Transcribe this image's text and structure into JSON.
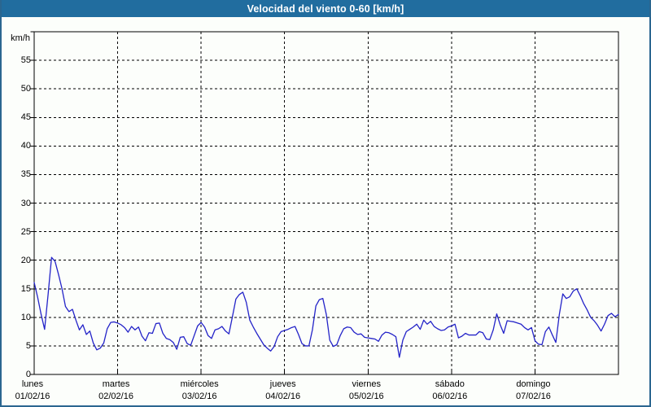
{
  "window": {
    "title": "Velocidad del viento 0-60 [km/h]"
  },
  "colors": {
    "titlebar_bg": "#216d9f",
    "titlebar_text": "#ffffff",
    "frame_border": "#2b6690",
    "background": "#fcfefb",
    "line": "#2323c8",
    "grid": "#000000",
    "label_text": "#000000"
  },
  "chart_data": {
    "type": "line",
    "title": "Velocidad del viento 0-60 [km/h]",
    "ylabel": "km/h",
    "ylim": [
      0,
      60
    ],
    "y_ticks": [
      0,
      5,
      10,
      15,
      20,
      25,
      30,
      35,
      40,
      45,
      50,
      55
    ],
    "grid": true,
    "legend": false,
    "x_days": [
      {
        "name": "lunes",
        "date": "01/02/16"
      },
      {
        "name": "martes",
        "date": "02/02/16"
      },
      {
        "name": "miércoles",
        "date": "03/02/16"
      },
      {
        "name": "jueves",
        "date": "04/02/16"
      },
      {
        "name": "viernes",
        "date": "05/02/16"
      },
      {
        "name": "sábado",
        "date": "06/02/16"
      },
      {
        "name": "domingo",
        "date": "07/02/16"
      }
    ],
    "series": [
      {
        "name": "velocidad del viento",
        "unit": "km/h",
        "sampling": "hourly, lunes 01/02/16 00:00 → domingo 07/02/16 24:00",
        "values": [
          16.1,
          13.5,
          10.5,
          7.9,
          14.0,
          20.5,
          19.8,
          17.5,
          15.0,
          11.9,
          11.0,
          11.4,
          9.5,
          7.8,
          8.7,
          7.0,
          7.6,
          5.5,
          4.3,
          4.6,
          5.5,
          8.0,
          9.1,
          9.2,
          9.0,
          8.7,
          8.2,
          7.4,
          8.4,
          7.8,
          8.3,
          6.7,
          5.9,
          7.3,
          7.2,
          8.9,
          9.0,
          7.2,
          6.3,
          6.1,
          5.6,
          4.4,
          6.5,
          6.6,
          5.4,
          5.1,
          6.8,
          8.5,
          9.1,
          8.3,
          6.8,
          6.3,
          7.8,
          8.0,
          8.4,
          7.6,
          7.1,
          10.1,
          13.2,
          14.0,
          14.4,
          12.6,
          9.5,
          8.3,
          7.2,
          6.2,
          5.2,
          4.6,
          4.1,
          4.9,
          6.6,
          7.5,
          7.7,
          7.9,
          8.2,
          8.4,
          7.0,
          5.4,
          5.0,
          5.0,
          7.8,
          12.0,
          13.1,
          13.3,
          10.5,
          6.0,
          4.9,
          5.2,
          6.8,
          8.0,
          8.3,
          8.2,
          7.4,
          7.0,
          7.1,
          6.5,
          6.4,
          6.3,
          6.2,
          5.8,
          6.9,
          7.4,
          7.3,
          7.0,
          6.6,
          3.0,
          6.0,
          7.5,
          7.9,
          8.3,
          8.8,
          7.9,
          9.5,
          8.8,
          9.3,
          8.4,
          8.0,
          7.7,
          7.8,
          8.3,
          8.5,
          8.8,
          6.4,
          6.7,
          7.2,
          6.9,
          6.9,
          6.9,
          7.5,
          7.3,
          6.2,
          6.1,
          7.8,
          10.6,
          8.7,
          7.2,
          9.4,
          9.3,
          9.2,
          9.0,
          8.8,
          8.2,
          7.8,
          8.2,
          5.9,
          5.3,
          5.2,
          7.5,
          8.3,
          6.9,
          5.6,
          10.5,
          14.1,
          13.3,
          13.6,
          14.6,
          15.0,
          13.8,
          12.4,
          11.3,
          10.0,
          9.4,
          8.6,
          7.6,
          8.8,
          10.3,
          10.7,
          10.1,
          10.5
        ]
      }
    ]
  }
}
